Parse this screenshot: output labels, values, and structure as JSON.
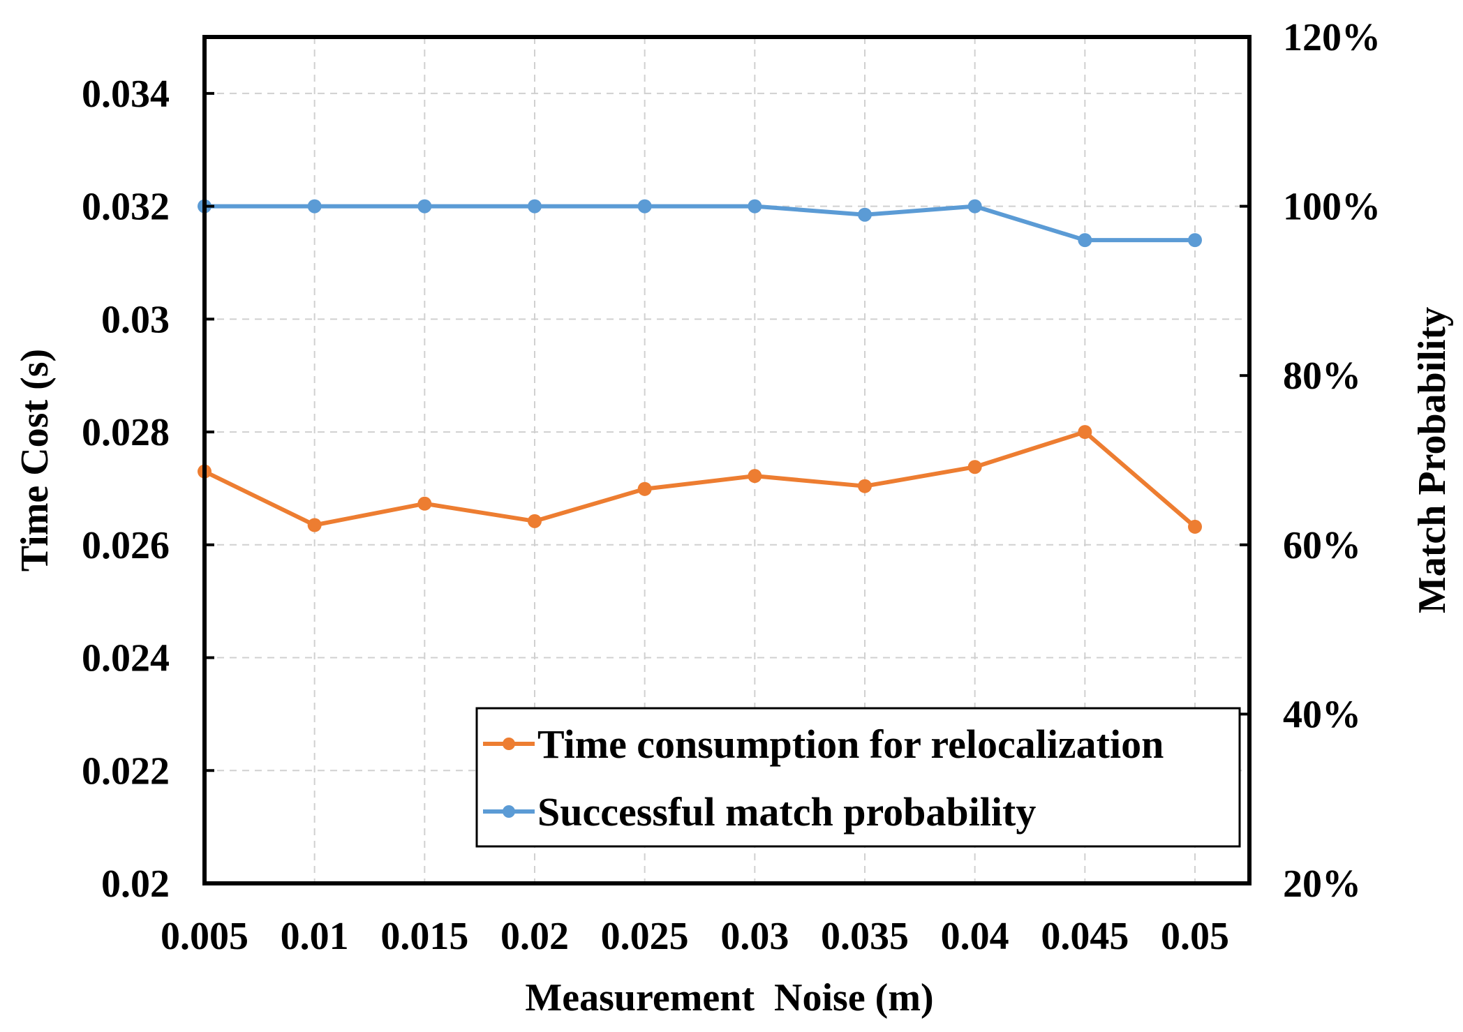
{
  "chart_data": {
    "type": "line",
    "title": "",
    "xlabel": "Measurement  Noise (m)",
    "ylabel": "Time Cost (s)",
    "y2label": "Match Probability",
    "x": [
      0.005,
      0.01,
      0.015,
      0.02,
      0.025,
      0.03,
      0.035,
      0.04,
      0.045,
      0.05
    ],
    "x_tick_labels": [
      "0.005",
      "0.01",
      "0.015",
      "0.02",
      "0.025",
      "0.03",
      "0.035",
      "0.04",
      "0.045",
      "0.05"
    ],
    "ylim": [
      0.02,
      0.035
    ],
    "y_ticks": [
      0.02,
      0.022,
      0.024,
      0.026,
      0.028,
      0.03,
      0.032,
      0.034
    ],
    "y_tick_labels": [
      "0.02",
      "0.022",
      "0.024",
      "0.026",
      "0.028",
      "0.03",
      "0.032",
      "0.034"
    ],
    "y2lim": [
      0.2,
      1.2
    ],
    "y2_ticks": [
      0.2,
      0.4,
      0.6,
      0.8,
      1.0,
      1.2
    ],
    "y2_tick_labels": [
      "20%",
      "40%",
      "60%",
      "80%",
      "100%",
      "120%"
    ],
    "grid": true,
    "legend_position": "bottom-right",
    "series": [
      {
        "name": "Time consumption for relocalization",
        "axis": "left",
        "color": "#ED7D31",
        "values": [
          0.0273,
          0.02635,
          0.02673,
          0.02642,
          0.02699,
          0.02722,
          0.02704,
          0.02738,
          0.028,
          0.02632
        ]
      },
      {
        "name": "Successful match probability",
        "axis": "right",
        "color": "#5B9BD5",
        "values": [
          1.0,
          1.0,
          1.0,
          1.0,
          1.0,
          1.0,
          0.99,
          1.0,
          0.96,
          0.96
        ]
      }
    ]
  }
}
